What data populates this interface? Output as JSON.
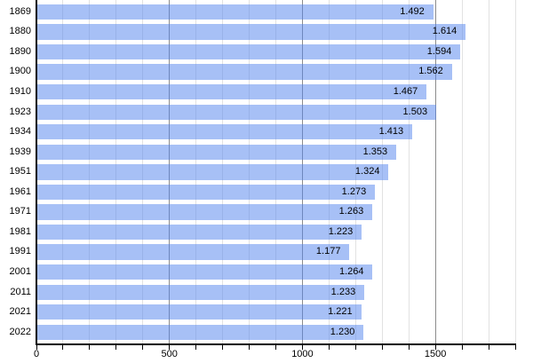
{
  "chart_data": {
    "type": "bar",
    "orientation": "horizontal",
    "title": "",
    "categories": [
      "1869",
      "1880",
      "1890",
      "1900",
      "1910",
      "1923",
      "1934",
      "1939",
      "1951",
      "1961",
      "1971",
      "1981",
      "1991",
      "2001",
      "2011",
      "2021",
      "2022"
    ],
    "values": [
      1492,
      1614,
      1594,
      1562,
      1467,
      1503,
      1413,
      1353,
      1324,
      1273,
      1263,
      1223,
      1177,
      1264,
      1233,
      1221,
      1230
    ],
    "value_labels": [
      "1.492",
      "1.614",
      "1.594",
      "1.562",
      "1.467",
      "1.503",
      "1.413",
      "1.353",
      "1.324",
      "1.273",
      "1.263",
      "1.223",
      "1.177",
      "1.264",
      "1.233",
      "1.221",
      "1.230"
    ],
    "xlabel": "",
    "ylabel": "",
    "xlim": [
      0,
      1800
    ],
    "x_tick_labels": [
      "0",
      "500",
      "1000",
      "1500"
    ],
    "x_tick_values": [
      0,
      500,
      1000,
      1500
    ],
    "x_minor_tick_step": 100,
    "x_major_grid_step": 500,
    "grid": "vertical",
    "legend": "none",
    "colors": {
      "bar_fill": "rgba(80,130,238,0.5)",
      "bar_fill_effective": "#a7c0f6",
      "grid_minor": "#e2e2e2",
      "grid_major": "#8c8c8c",
      "axis": "#000000",
      "text": "#000000",
      "background": "#ffffff"
    }
  }
}
